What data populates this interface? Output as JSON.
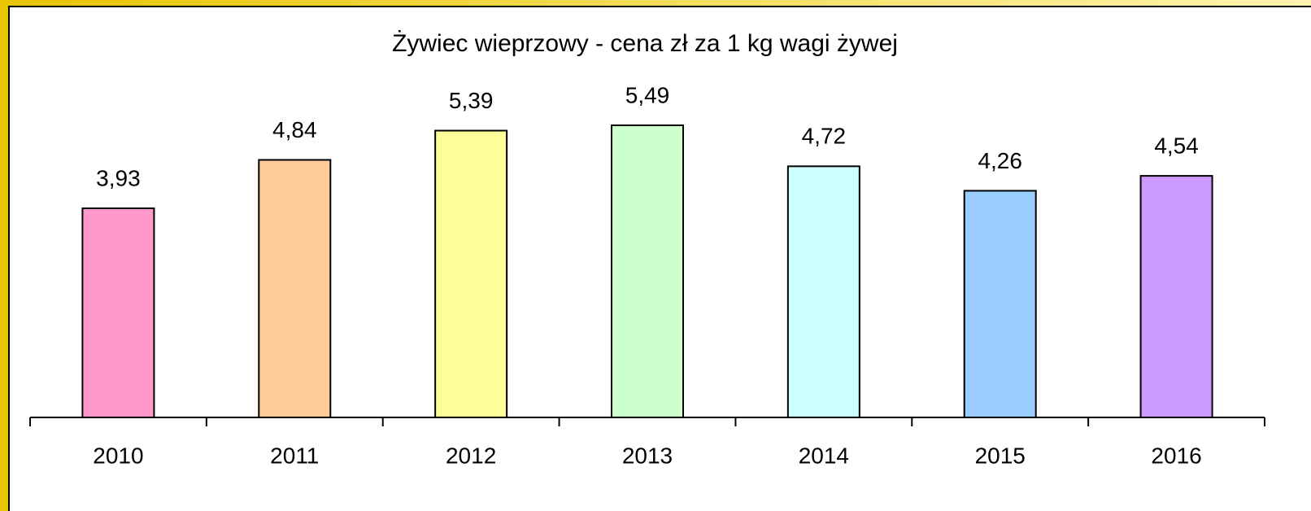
{
  "chart_data": {
    "type": "bar",
    "title": "Żywiec wieprzowy - cena zł  za 1 kg wagi żywej",
    "categories": [
      "2010",
      "2011",
      "2012",
      "2013",
      "2014",
      "2015",
      "2016"
    ],
    "values": [
      3.93,
      4.84,
      5.39,
      5.49,
      4.72,
      4.26,
      4.54
    ],
    "value_labels": [
      "3,93",
      "4,84",
      "5,39",
      "5,49",
      "4,72",
      "4,26",
      "4,54"
    ],
    "colors": [
      "#ff99cc",
      "#ffcc99",
      "#ffff99",
      "#ccffcc",
      "#ccffff",
      "#99ccff",
      "#cc99ff"
    ]
  }
}
